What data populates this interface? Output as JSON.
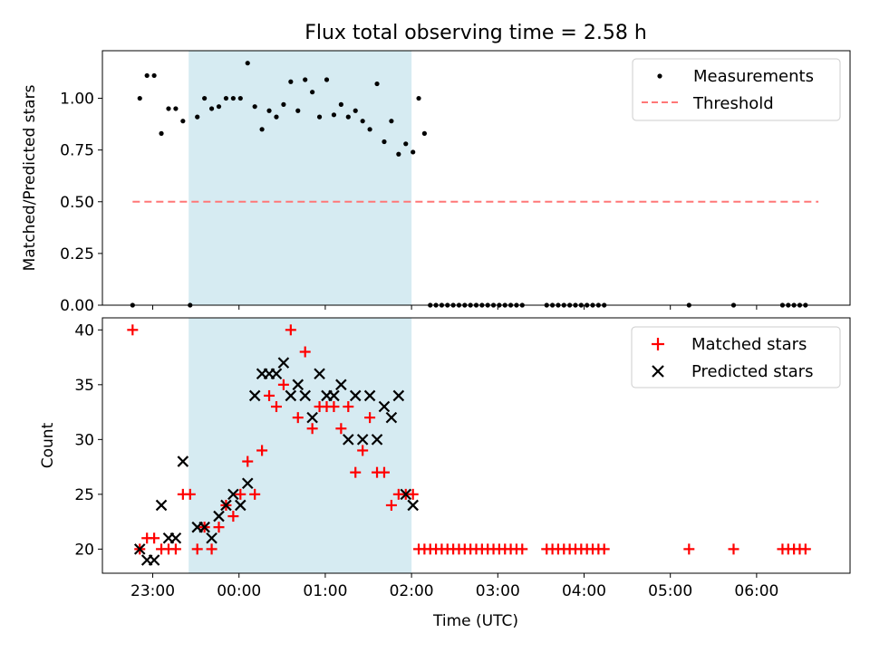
{
  "chart_data": [
    {
      "type": "scatter",
      "title": "Flux total observing time = 2.58 h",
      "ylabel": "Matched/Predicted stars",
      "xlabel": "",
      "xlim": [
        "22:25",
        "07:05"
      ],
      "ylim": [
        0,
        1.23
      ],
      "y_ticks": [
        0.0,
        0.25,
        0.5,
        0.75,
        1.0
      ],
      "y_tick_labels": [
        "0.00",
        "0.25",
        "0.50",
        "0.75",
        "1.00"
      ],
      "x_tick_labels_shown": false,
      "shaded_region": {
        "x": [
          "23:25",
          "02:00"
        ],
        "color": "#add8e6"
      },
      "grid": false,
      "legend": "top-right",
      "series": [
        {
          "name": "Measurements",
          "style": "dot",
          "color": "#000000",
          "x": [
            "22:46",
            "22:51",
            "22:56",
            "23:01",
            "23:06",
            "23:11",
            "23:16",
            "23:21",
            "23:26",
            "23:31",
            "23:36",
            "23:41",
            "23:46",
            "23:51",
            "23:56",
            "00:01",
            "00:06",
            "00:11",
            "00:16",
            "00:21",
            "00:26",
            "00:31",
            "00:36",
            "00:41",
            "00:46",
            "00:51",
            "00:56",
            "01:01",
            "01:06",
            "01:11",
            "01:16",
            "01:21",
            "01:26",
            "01:31",
            "01:36",
            "01:41",
            "01:46",
            "01:51",
            "01:56",
            "02:01",
            "02:05",
            "02:09",
            "02:13",
            "02:17",
            "02:21",
            "02:25",
            "02:29",
            "02:33",
            "02:37",
            "02:41",
            "02:45",
            "02:49",
            "02:53",
            "02:57",
            "03:01",
            "03:05",
            "03:09",
            "03:13",
            "03:17",
            "03:34",
            "03:38",
            "03:42",
            "03:46",
            "03:50",
            "03:54",
            "03:58",
            "04:02",
            "04:06",
            "04:10",
            "04:14",
            "05:13",
            "05:44",
            "06:18",
            "06:22",
            "06:26",
            "06:30",
            "06:34"
          ],
          "y": [
            0.0,
            1.0,
            1.11,
            1.11,
            0.83,
            0.95,
            0.95,
            0.89,
            0.0,
            0.91,
            1.0,
            0.95,
            0.96,
            1.0,
            1.0,
            1.0,
            1.17,
            0.96,
            0.85,
            0.94,
            0.91,
            0.97,
            1.08,
            0.94,
            1.09,
            1.03,
            0.91,
            1.09,
            0.92,
            0.97,
            0.91,
            0.94,
            0.89,
            0.85,
            1.07,
            0.79,
            0.89,
            0.73,
            0.78,
            0.74,
            1.0,
            0.83,
            0.0,
            0.0,
            0.0,
            0.0,
            0.0,
            0.0,
            0.0,
            0.0,
            0.0,
            0.0,
            0.0,
            0.0,
            0.0,
            0.0,
            0.0,
            0.0,
            0.0,
            0.0,
            0.0,
            0.0,
            0.0,
            0.0,
            0.0,
            0.0,
            0.0,
            0.0,
            0.0,
            0.0,
            0.0,
            0.0,
            0.0,
            0.0,
            0.0,
            0.0,
            0.0
          ]
        },
        {
          "name": "Threshold",
          "style": "dashed-line",
          "color": "#ff7777",
          "x": [
            "22:46",
            "06:43"
          ],
          "y": [
            0.5,
            0.5
          ]
        }
      ]
    },
    {
      "type": "scatter",
      "title": "",
      "ylabel": "Count",
      "xlabel": "Time (UTC)",
      "xlim": [
        "22:25",
        "07:05"
      ],
      "ylim": [
        17.8,
        41.1
      ],
      "y_ticks": [
        20,
        25,
        30,
        35,
        40
      ],
      "y_tick_labels": [
        "20",
        "25",
        "30",
        "35",
        "40"
      ],
      "x_ticks": [
        "23:00",
        "00:00",
        "01:00",
        "02:00",
        "03:00",
        "04:00",
        "05:00",
        "06:00"
      ],
      "shaded_region": {
        "x": [
          "23:25",
          "02:00"
        ],
        "color": "#add8e6"
      },
      "grid": false,
      "legend": "top-right",
      "series": [
        {
          "name": "Matched stars",
          "style": "plus",
          "color": "#ff0000",
          "x": [
            "22:46",
            "22:51",
            "22:56",
            "23:01",
            "23:06",
            "23:11",
            "23:16",
            "23:21",
            "23:26",
            "23:31",
            "23:36",
            "23:41",
            "23:46",
            "23:51",
            "23:56",
            "00:01",
            "00:06",
            "00:11",
            "00:16",
            "00:21",
            "00:26",
            "00:31",
            "00:36",
            "00:41",
            "00:46",
            "00:51",
            "00:56",
            "01:01",
            "01:06",
            "01:11",
            "01:16",
            "01:21",
            "01:26",
            "01:31",
            "01:36",
            "01:41",
            "01:46",
            "01:51",
            "01:56",
            "02:01",
            "02:05",
            "02:09",
            "02:13",
            "02:17",
            "02:21",
            "02:25",
            "02:29",
            "02:33",
            "02:37",
            "02:41",
            "02:45",
            "02:49",
            "02:53",
            "02:57",
            "03:01",
            "03:05",
            "03:09",
            "03:13",
            "03:17",
            "03:34",
            "03:38",
            "03:42",
            "03:46",
            "03:50",
            "03:54",
            "03:58",
            "04:02",
            "04:06",
            "04:10",
            "04:14",
            "05:13",
            "05:44",
            "06:18",
            "06:22",
            "06:26",
            "06:30",
            "06:34"
          ],
          "y": [
            40,
            20,
            21,
            21,
            20,
            20,
            20,
            25,
            25,
            20,
            22,
            20,
            22,
            24,
            23,
            25,
            28,
            25,
            29,
            34,
            33,
            35,
            40,
            32,
            38,
            31,
            33,
            33,
            33,
            31,
            33,
            27,
            29,
            32,
            27,
            27,
            24,
            25,
            25,
            25,
            20,
            20,
            20,
            20,
            20,
            20,
            20,
            20,
            20,
            20,
            20,
            20,
            20,
            20,
            20,
            20,
            20,
            20,
            20,
            20,
            20,
            20,
            20,
            20,
            20,
            20,
            20,
            20,
            20,
            20,
            20,
            20,
            20,
            20,
            20,
            20,
            20
          ]
        },
        {
          "name": "Predicted stars",
          "style": "x",
          "color": "#000000",
          "x": [
            "22:51",
            "22:56",
            "23:01",
            "23:06",
            "23:11",
            "23:16",
            "23:21",
            "23:31",
            "23:36",
            "23:41",
            "23:46",
            "23:51",
            "23:56",
            "00:01",
            "00:06",
            "00:11",
            "00:16",
            "00:21",
            "00:26",
            "00:31",
            "00:36",
            "00:41",
            "00:46",
            "00:51",
            "00:56",
            "01:01",
            "01:06",
            "01:11",
            "01:16",
            "01:21",
            "01:26",
            "01:31",
            "01:36",
            "01:41",
            "01:46",
            "01:51",
            "01:56",
            "02:01"
          ],
          "y": [
            20,
            19,
            19,
            24,
            21,
            21,
            28,
            22,
            22,
            21,
            23,
            24,
            25,
            24,
            26,
            34,
            36,
            36,
            36,
            37,
            34,
            35,
            34,
            32,
            36,
            34,
            34,
            35,
            30,
            34,
            30,
            34,
            30,
            33,
            32,
            34,
            25,
            24
          ]
        }
      ]
    }
  ]
}
